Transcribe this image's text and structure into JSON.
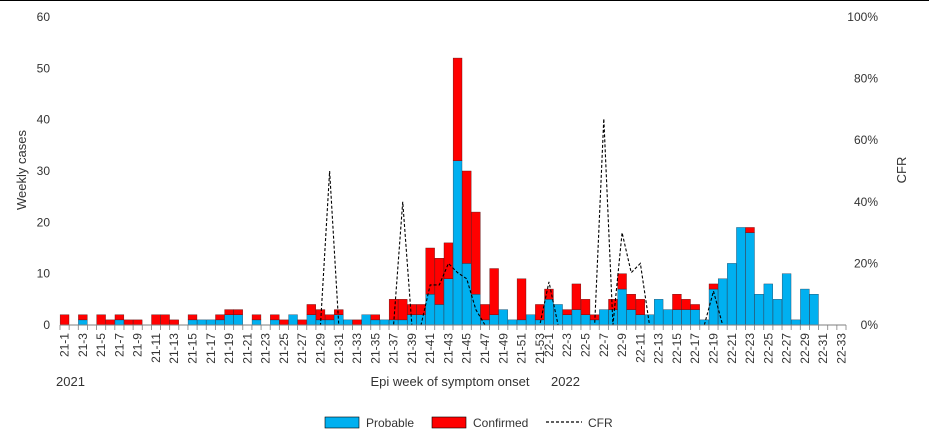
{
  "chart_data": {
    "type": "bar",
    "stacked": true,
    "xlabel": "Epi week of symptom onset",
    "ylabel": "Weekly cases",
    "y2label": "CFR",
    "ylim": [
      0,
      60
    ],
    "yticks": [
      0,
      10,
      20,
      30,
      40,
      50,
      60
    ],
    "y2lim": [
      0,
      100
    ],
    "y2ticks": [
      "0%",
      "20%",
      "40%",
      "60%",
      "80%",
      "100%"
    ],
    "year_labels": [
      "2021",
      "2022"
    ],
    "grid": false,
    "legend_position": "bottom",
    "colors": {
      "probable": "#00B0F0",
      "confirmed": "#FF0000",
      "cfr": "#000000"
    },
    "categories": [
      "21-1",
      "21-2",
      "21-3",
      "21-4",
      "21-5",
      "21-6",
      "21-7",
      "21-8",
      "21-9",
      "21-10",
      "21-11",
      "21-12",
      "21-13",
      "21-14",
      "21-15",
      "21-16",
      "21-17",
      "21-18",
      "21-19",
      "21-20",
      "21-21",
      "21-22",
      "21-23",
      "21-24",
      "21-25",
      "21-26",
      "21-27",
      "21-28",
      "21-29",
      "21-30",
      "21-31",
      "21-32",
      "21-33",
      "21-34",
      "21-35",
      "21-36",
      "21-37",
      "21-38",
      "21-39",
      "21-40",
      "21-41",
      "21-42",
      "21-43",
      "21-44",
      "21-45",
      "21-46",
      "21-47",
      "21-48",
      "21-49",
      "21-50",
      "21-51",
      "21-52",
      "21-53",
      "22-1",
      "22-2",
      "22-3",
      "22-4",
      "22-5",
      "22-6",
      "22-7",
      "22-8",
      "22-9",
      "22-10",
      "22-11",
      "22-12",
      "22-13",
      "22-14",
      "22-15",
      "22-16",
      "22-17",
      "22-18",
      "22-19",
      "22-20",
      "22-21",
      "22-22",
      "22-23",
      "22-24",
      "22-25",
      "22-26",
      "22-27",
      "22-28",
      "22-29",
      "22-30",
      "22-31",
      "22-32",
      "22-33"
    ],
    "tick_labels": [
      "21-1",
      "21-3",
      "21-5",
      "21-7",
      "21-9",
      "21-11",
      "21-13",
      "21-15",
      "21-17",
      "21-19",
      "21-21",
      "21-23",
      "21-25",
      "21-27",
      "21-29",
      "21-31",
      "21-33",
      "21-35",
      "21-37",
      "21-39",
      "21-41",
      "21-43",
      "21-45",
      "21-47",
      "21-49",
      "21-51",
      "21-53",
      "22-1",
      "22-3",
      "22-5",
      "22-7",
      "22-9",
      "22-11",
      "22-13",
      "22-15",
      "22-17",
      "22-19",
      "22-21",
      "22-23",
      "22-25",
      "22-27",
      "22-29",
      "22-31",
      "22-33"
    ],
    "series": [
      {
        "name": "Probable",
        "values": [
          0,
          0,
          1,
          0,
          0,
          0,
          1,
          0,
          0,
          0,
          0,
          0,
          0,
          0,
          1,
          1,
          1,
          1,
          2,
          2,
          0,
          1,
          0,
          1,
          0,
          2,
          0,
          2,
          1,
          1,
          2,
          1,
          0,
          2,
          1,
          1,
          1,
          1,
          2,
          2,
          6,
          4,
          9,
          32,
          12,
          6,
          1,
          2,
          3,
          1,
          1,
          2,
          1,
          5,
          4,
          2,
          3,
          2,
          1,
          3,
          3,
          7,
          3,
          2,
          2,
          5,
          3,
          3,
          3,
          3,
          1,
          7,
          9,
          12,
          19,
          18,
          6,
          8,
          5,
          10,
          1,
          7,
          6,
          0,
          0,
          0
        ]
      },
      {
        "name": "Confirmed",
        "values": [
          2,
          0,
          1,
          0,
          2,
          1,
          1,
          1,
          1,
          0,
          2,
          2,
          1,
          0,
          1,
          0,
          0,
          1,
          1,
          1,
          0,
          1,
          0,
          1,
          1,
          0,
          1,
          2,
          2,
          1,
          1,
          0,
          1,
          0,
          1,
          0,
          4,
          4,
          2,
          2,
          9,
          9,
          7,
          20,
          18,
          16,
          3,
          9,
          0,
          0,
          8,
          0,
          3,
          2,
          0,
          1,
          5,
          3,
          1,
          0,
          2,
          3,
          3,
          3,
          0,
          0,
          0,
          3,
          2,
          1,
          0,
          1,
          0,
          0,
          0,
          1,
          0,
          0,
          0,
          0,
          0,
          0,
          0,
          0,
          0,
          0
        ]
      },
      {
        "name": "CFR",
        "values": [
          0,
          0,
          0,
          0,
          0,
          0,
          0,
          0,
          0,
          0,
          0,
          0,
          0,
          0,
          0,
          0,
          0,
          0,
          0,
          0,
          0,
          0,
          0,
          0,
          0,
          0,
          0,
          0,
          0,
          50,
          0,
          0,
          0,
          0,
          0,
          0,
          0,
          40,
          0,
          0,
          13,
          13,
          20,
          17,
          15,
          5,
          0,
          0,
          0,
          0,
          0,
          0,
          0,
          14,
          0,
          0,
          0,
          0,
          0,
          67,
          0,
          30,
          17,
          20,
          0,
          0,
          0,
          0,
          0,
          0,
          0,
          11,
          0,
          0,
          0,
          0,
          0,
          0,
          0,
          0,
          0,
          0,
          0,
          0,
          0,
          0
        ]
      }
    ]
  }
}
